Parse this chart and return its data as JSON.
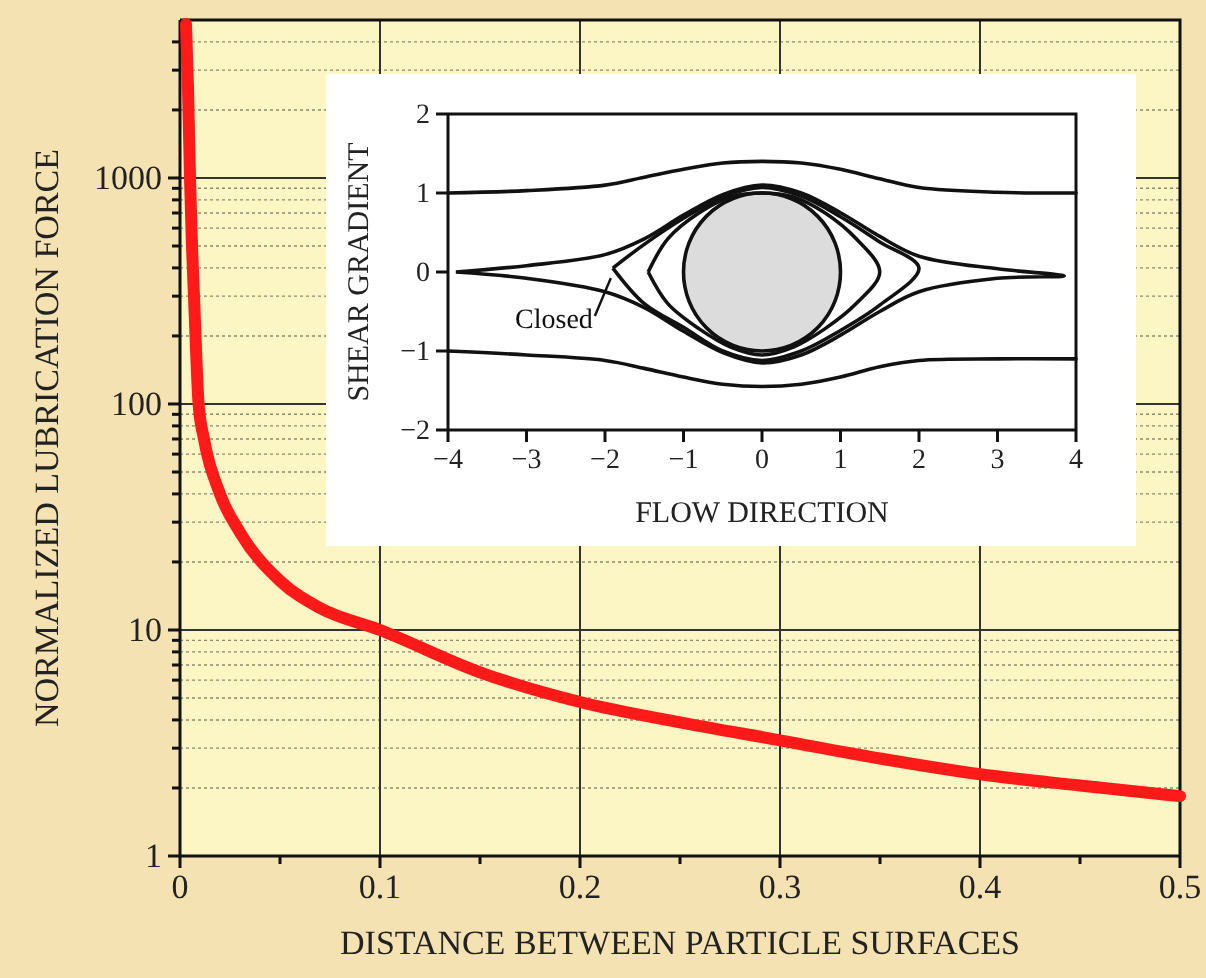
{
  "chart_data": [
    {
      "type": "line",
      "xlabel": "DISTANCE BETWEEN PARTICLE SURFACES",
      "ylabel": "NORMALIZED LUBRICATION FORCE",
      "log": "y",
      "grid": true,
      "marker": "none",
      "line_style": "solid",
      "xlim": [
        0,
        0.5
      ],
      "xticks": [
        0,
        {
          "value": 0.05,
          "label": null
        },
        0.1,
        {
          "value": 0.15,
          "label": null
        },
        0.2,
        {
          "value": 0.25,
          "label": null
        },
        0.3,
        {
          "value": 0.35,
          "label": null
        },
        0.4,
        {
          "value": 0.45,
          "label": null
        },
        0.5
      ],
      "ylim": [
        1,
        5000
      ],
      "yticks": [
        1,
        {
          "value": 2,
          "label": null
        },
        {
          "value": 3,
          "label": null
        },
        {
          "value": 4,
          "label": null
        },
        {
          "value": 5,
          "label": null
        },
        {
          "value": 6,
          "label": null
        },
        {
          "value": 7,
          "label": null
        },
        {
          "value": 8,
          "label": null
        },
        {
          "value": 9,
          "label": null
        },
        10,
        {
          "value": 20,
          "label": null
        },
        {
          "value": 30,
          "label": null
        },
        {
          "value": 40,
          "label": null
        },
        {
          "value": 50,
          "label": null
        },
        {
          "value": 60,
          "label": null
        },
        {
          "value": 70,
          "label": null
        },
        {
          "value": 80,
          "label": null
        },
        {
          "value": 90,
          "label": null
        },
        100,
        {
          "value": 200,
          "label": null
        },
        {
          "value": 300,
          "label": null
        },
        {
          "value": 400,
          "label": null
        },
        {
          "value": 500,
          "label": null
        },
        {
          "value": 600,
          "label": null
        },
        {
          "value": 700,
          "label": null
        },
        {
          "value": 800,
          "label": null
        },
        {
          "value": 900,
          "label": null
        },
        1000,
        {
          "value": 2000,
          "label": null
        },
        {
          "value": 3000,
          "label": null
        },
        {
          "value": 4000,
          "label": null
        }
      ],
      "x": [
        0.003,
        0.004,
        0.005,
        0.006,
        0.007,
        0.0093,
        0.012,
        0.02,
        0.03,
        0.05,
        0.07,
        0.1,
        0.15,
        0.2,
        0.25,
        0.3,
        0.35,
        0.4,
        0.45,
        0.5
      ],
      "series": [
        {
          "color": "#ff1a1a",
          "values": [
            4800,
            2500,
            1000,
            500,
            300,
            100,
            70,
            40,
            27,
            16.5,
            12.5,
            10,
            6.5,
            4.8,
            3.9,
            3.25,
            2.7,
            2.3,
            2.05,
            1.84
          ]
        }
      ]
    },
    {
      "type": "line",
      "xlabel": "FLOW DIRECTION",
      "ylabel": "SHEAR GRADIENT",
      "grid": false,
      "marker": "none",
      "line_style": "solid",
      "xlim": [
        -4,
        4
      ],
      "xticks": [
        -4,
        -3,
        -2,
        -1,
        0,
        1,
        2,
        3,
        4
      ],
      "ylim": [
        -2,
        2
      ],
      "yticks": [
        -2,
        -1,
        0,
        1,
        2
      ],
      "annotations": [
        "Closed"
      ],
      "series": [
        {
          "color": "#111111",
          "x": [
            -4,
            -3,
            -2,
            -1.5,
            -1,
            -0.5,
            0,
            0.5,
            1,
            1.5,
            2,
            3,
            4
          ],
          "values": [
            1,
            1.03,
            1.1,
            1.2,
            1.3,
            1.38,
            1.4,
            1.38,
            1.3,
            1.18,
            1.07,
            1.01,
            1
          ]
        },
        {
          "color": "#111111",
          "x": [
            -4,
            -3,
            -2,
            -1.5,
            -1,
            -0.5,
            0,
            0.5,
            1,
            1.5,
            2,
            3,
            4
          ],
          "values": [
            -1,
            -1.05,
            -1.12,
            -1.22,
            -1.33,
            -1.42,
            -1.45,
            -1.42,
            -1.33,
            -1.2,
            -1.12,
            -1.1,
            -1.1
          ]
        }
      ]
    }
  ]
}
